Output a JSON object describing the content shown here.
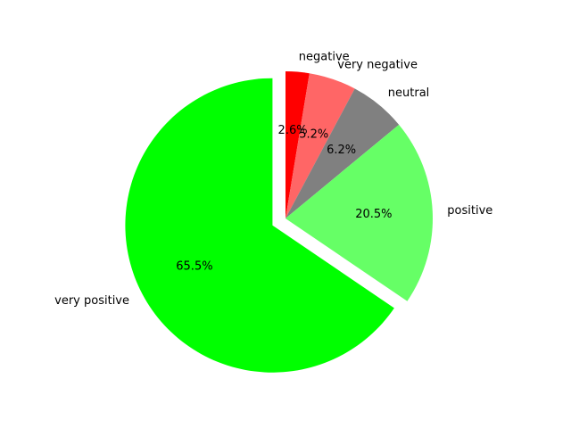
{
  "chart_data": {
    "type": "pie",
    "title": "",
    "start_angle_deg": 90,
    "direction": "clockwise",
    "slices": [
      {
        "label": "negative",
        "value": 2.6,
        "pct_label": "2.6%",
        "color": "#ff0000",
        "exploded": false
      },
      {
        "label": "very negative",
        "value": 5.2,
        "pct_label": "5.2%",
        "color": "#ff6666",
        "exploded": false
      },
      {
        "label": "neutral",
        "value": 6.2,
        "pct_label": "6.2%",
        "color": "#808080",
        "exploded": false
      },
      {
        "label": "positive",
        "value": 20.5,
        "pct_label": "20.5%",
        "color": "#66ff66",
        "exploded": false
      },
      {
        "label": "very positive",
        "value": 65.5,
        "pct_label": "65.5%",
        "color": "#00ff00",
        "exploded": true
      }
    ]
  }
}
